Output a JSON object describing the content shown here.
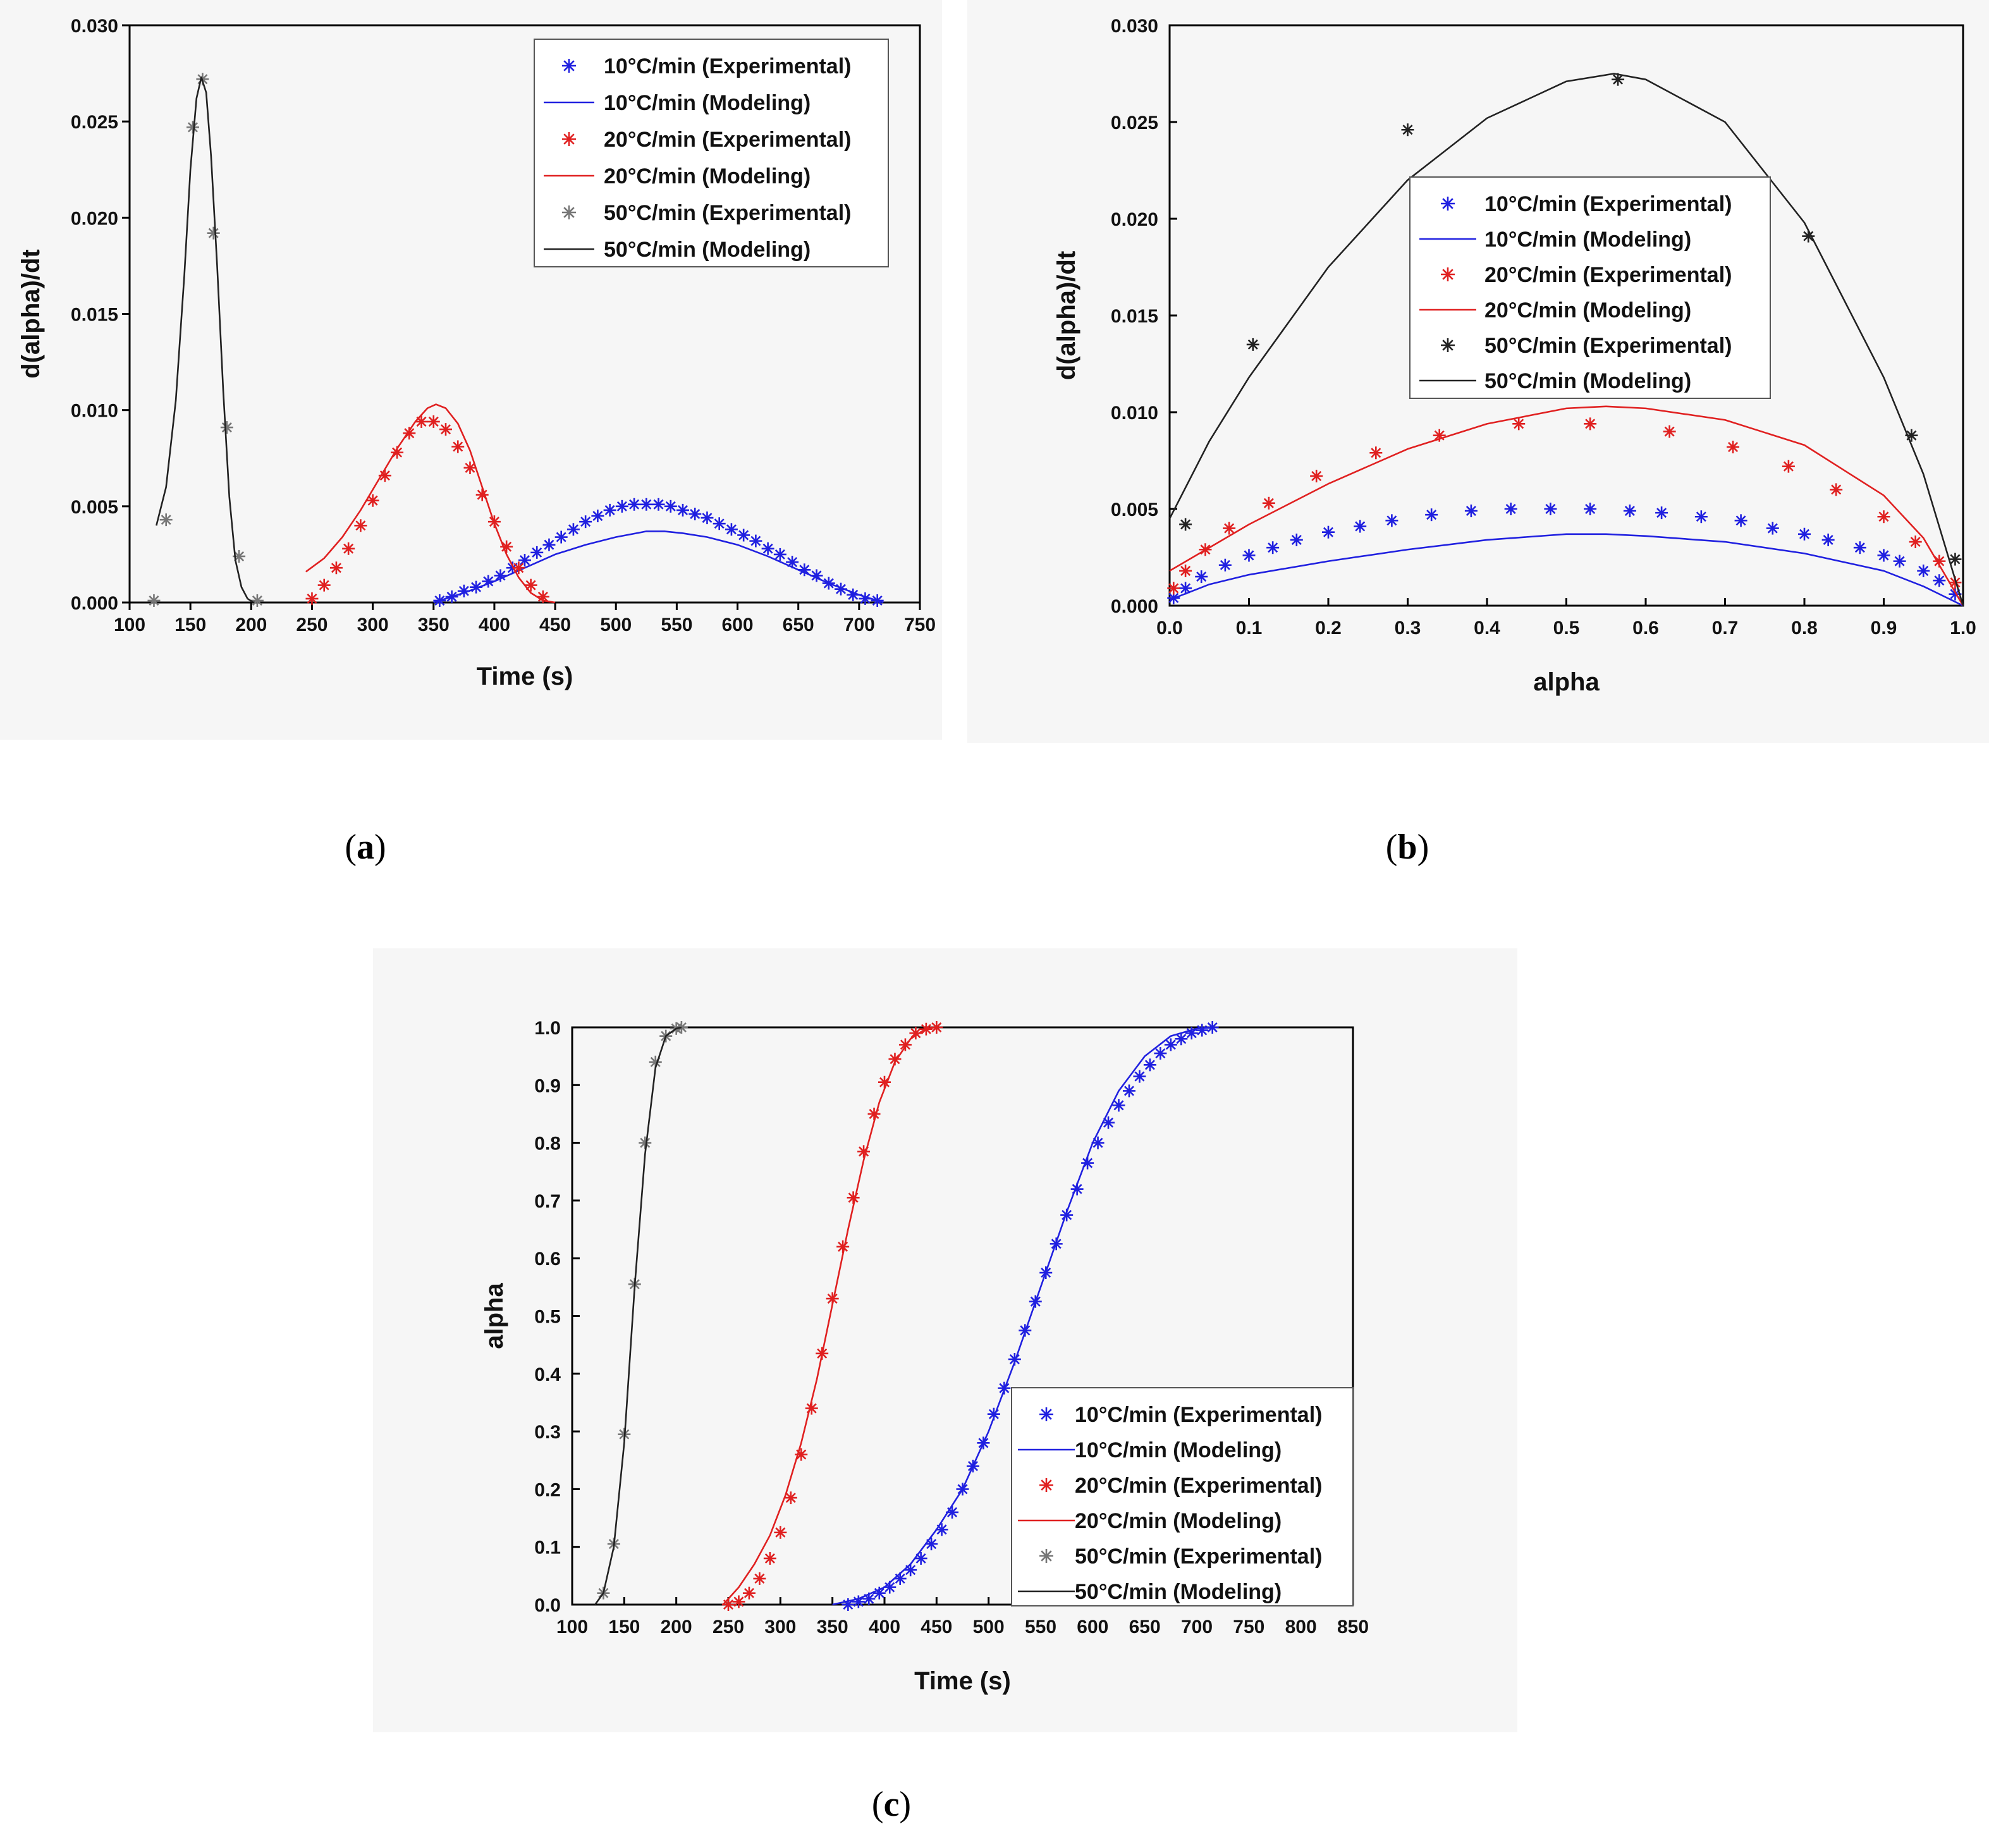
{
  "figure": {
    "panel_labels": [
      {
        "open": "(",
        "letter": "a",
        "close": ")"
      },
      {
        "open": "(",
        "letter": "b",
        "close": ")"
      },
      {
        "open": "(",
        "letter": "c",
        "close": ")"
      }
    ]
  },
  "legend_labels": [
    "10°C/min (Experimental)",
    "10°C/min (Modeling)",
    "20°C/min (Experimental)",
    "20°C/min (Modeling)",
    "50°C/min (Experimental)",
    "50°C/min (Modeling)"
  ],
  "colors": {
    "r10": "#2020e0",
    "r20": "#e02020",
    "r50": "#222222"
  },
  "chart_data": [
    {
      "id": "a",
      "type": "line+scatter",
      "xlabel": "Time (s)",
      "ylabel": "d(alpha)/dt",
      "xlim": [
        100,
        750
      ],
      "ylim": [
        0,
        0.03
      ],
      "xticks": [
        "100",
        "150",
        "200",
        "250",
        "300",
        "350",
        "400",
        "450",
        "500",
        "550",
        "600",
        "650",
        "700",
        "750"
      ],
      "yticks": [
        "0.000",
        "0.005",
        "0.010",
        "0.015",
        "0.020",
        "0.025",
        "0.030"
      ],
      "legend_position": "top-right",
      "series": [
        {
          "name": "10°C/min (Experimental)",
          "kind": "scatter",
          "color": "#2020e0",
          "x": [
            355,
            365,
            375,
            385,
            395,
            405,
            415,
            425,
            435,
            445,
            455,
            465,
            475,
            485,
            495,
            505,
            515,
            525,
            535,
            545,
            555,
            565,
            575,
            585,
            595,
            605,
            615,
            625,
            635,
            645,
            655,
            665,
            675,
            685,
            695,
            705,
            715
          ],
          "y": [
            0.0001,
            0.0003,
            0.0006,
            0.0008,
            0.0011,
            0.0014,
            0.0018,
            0.0022,
            0.0026,
            0.003,
            0.0034,
            0.0038,
            0.0042,
            0.0045,
            0.0048,
            0.005,
            0.0051,
            0.0051,
            0.0051,
            0.005,
            0.0048,
            0.0046,
            0.0044,
            0.0041,
            0.0038,
            0.0035,
            0.0032,
            0.0028,
            0.0025,
            0.0021,
            0.0017,
            0.0014,
            0.001,
            0.0007,
            0.0004,
            0.0002,
            0.0001
          ]
        },
        {
          "name": "10°C/min (Modeling)",
          "kind": "line",
          "color": "#2020e0",
          "x": [
            350,
            375,
            400,
            425,
            450,
            475,
            500,
            525,
            540,
            555,
            575,
            600,
            625,
            650,
            675,
            700,
            720
          ],
          "y": [
            0.0,
            0.0005,
            0.0011,
            0.0018,
            0.0025,
            0.003,
            0.0034,
            0.0037,
            0.0037,
            0.0036,
            0.0034,
            0.003,
            0.0024,
            0.0017,
            0.001,
            0.0004,
            0.0
          ]
        },
        {
          "name": "20°C/min (Experimental)",
          "kind": "scatter",
          "color": "#e02020",
          "x": [
            250,
            260,
            270,
            280,
            290,
            300,
            310,
            320,
            330,
            340,
            350,
            360,
            370,
            380,
            390,
            400,
            410,
            420,
            430,
            440
          ],
          "y": [
            0.0002,
            0.0009,
            0.0018,
            0.0028,
            0.004,
            0.0053,
            0.0066,
            0.0078,
            0.0088,
            0.0094,
            0.0094,
            0.009,
            0.0081,
            0.007,
            0.0056,
            0.0042,
            0.0029,
            0.0018,
            0.0009,
            0.0003
          ]
        },
        {
          "name": "20°C/min (Modeling)",
          "kind": "line",
          "color": "#e02020",
          "x": [
            245,
            260,
            275,
            290,
            305,
            320,
            335,
            345,
            352,
            360,
            370,
            380,
            390,
            400,
            410,
            420,
            430,
            440,
            450
          ],
          "y": [
            0.0016,
            0.0023,
            0.0034,
            0.0048,
            0.0064,
            0.008,
            0.0094,
            0.0101,
            0.0103,
            0.0101,
            0.0093,
            0.0079,
            0.006,
            0.0041,
            0.0025,
            0.0013,
            0.0005,
            0.0001,
            0.0
          ]
        },
        {
          "name": "50°C/min (Experimental)",
          "kind": "scatter",
          "color": "#777777",
          "x": [
            120,
            130,
            152,
            160,
            169,
            180,
            190,
            205
          ],
          "y": [
            0.0001,
            0.0043,
            0.0247,
            0.0272,
            0.0192,
            0.0091,
            0.0024,
            0.0001
          ]
        },
        {
          "name": "50°C/min (Modeling)",
          "kind": "line",
          "color": "#222222",
          "x": [
            122,
            130,
            138,
            145,
            150,
            155,
            159,
            163,
            167,
            172,
            177,
            182,
            187,
            192,
            197,
            202
          ],
          "y": [
            0.004,
            0.006,
            0.0105,
            0.017,
            0.0225,
            0.0262,
            0.0273,
            0.0265,
            0.0232,
            0.0175,
            0.011,
            0.0055,
            0.0022,
            0.0008,
            0.0002,
            0.0
          ]
        }
      ]
    },
    {
      "id": "b",
      "type": "line+scatter",
      "xlabel": "alpha",
      "ylabel": "d(alpha)/dt",
      "xlim": [
        0,
        1
      ],
      "ylim": [
        0,
        0.03
      ],
      "xticks": [
        "0.0",
        "0.1",
        "0.2",
        "0.3",
        "0.4",
        "0.5",
        "0.6",
        "0.7",
        "0.8",
        "0.9",
        "1.0"
      ],
      "yticks": [
        "0.000",
        "0.005",
        "0.010",
        "0.015",
        "0.020",
        "0.025",
        "0.030"
      ],
      "legend_position": "center",
      "series": [
        {
          "name": "10°C/min (Experimental)",
          "kind": "scatter",
          "color": "#2020e0",
          "x": [
            0.005,
            0.02,
            0.04,
            0.07,
            0.1,
            0.13,
            0.16,
            0.2,
            0.24,
            0.28,
            0.33,
            0.38,
            0.43,
            0.48,
            0.53,
            0.58,
            0.62,
            0.67,
            0.72,
            0.76,
            0.8,
            0.83,
            0.87,
            0.9,
            0.92,
            0.95,
            0.97,
            0.99
          ],
          "y": [
            0.0004,
            0.0009,
            0.0015,
            0.0021,
            0.0026,
            0.003,
            0.0034,
            0.0038,
            0.0041,
            0.0044,
            0.0047,
            0.0049,
            0.005,
            0.005,
            0.005,
            0.0049,
            0.0048,
            0.0046,
            0.0044,
            0.004,
            0.0037,
            0.0034,
            0.003,
            0.0026,
            0.0023,
            0.0018,
            0.0013,
            0.0006
          ]
        },
        {
          "name": "10°C/min (Modeling)",
          "kind": "line",
          "color": "#2020e0",
          "x": [
            0.0,
            0.05,
            0.1,
            0.2,
            0.3,
            0.4,
            0.5,
            0.55,
            0.6,
            0.7,
            0.8,
            0.9,
            0.95,
            1.0
          ],
          "y": [
            0.0003,
            0.0011,
            0.0016,
            0.0023,
            0.0029,
            0.0034,
            0.0037,
            0.0037,
            0.0036,
            0.0033,
            0.0027,
            0.0018,
            0.001,
            0.0
          ]
        },
        {
          "name": "20°C/min (Experimental)",
          "kind": "scatter",
          "color": "#e02020",
          "x": [
            0.005,
            0.02,
            0.045,
            0.075,
            0.125,
            0.185,
            0.26,
            0.34,
            0.44,
            0.53,
            0.63,
            0.71,
            0.78,
            0.84,
            0.9,
            0.94,
            0.97,
            0.99
          ],
          "y": [
            0.0009,
            0.0018,
            0.0029,
            0.004,
            0.0053,
            0.0067,
            0.0079,
            0.0088,
            0.0094,
            0.0094,
            0.009,
            0.0082,
            0.0072,
            0.006,
            0.0046,
            0.0033,
            0.0023,
            0.0012
          ]
        },
        {
          "name": "20°C/min (Modeling)",
          "kind": "line",
          "color": "#e02020",
          "x": [
            0.0,
            0.05,
            0.1,
            0.2,
            0.3,
            0.4,
            0.5,
            0.55,
            0.6,
            0.7,
            0.8,
            0.9,
            0.95,
            1.0
          ],
          "y": [
            0.0018,
            0.003,
            0.0042,
            0.0063,
            0.0081,
            0.0094,
            0.0102,
            0.0103,
            0.0102,
            0.0096,
            0.0083,
            0.0057,
            0.0035,
            0.0
          ]
        },
        {
          "name": "50°C/min (Experimental)",
          "kind": "scatter",
          "color": "#222222",
          "x": [
            0.02,
            0.105,
            0.3,
            0.565,
            0.805,
            0.935,
            0.99
          ],
          "y": [
            0.0042,
            0.0135,
            0.0246,
            0.0272,
            0.0191,
            0.0088,
            0.0024
          ]
        },
        {
          "name": "50°C/min (Modeling)",
          "kind": "line",
          "color": "#222222",
          "x": [
            0.0,
            0.05,
            0.1,
            0.2,
            0.3,
            0.4,
            0.5,
            0.56,
            0.6,
            0.7,
            0.8,
            0.9,
            0.95,
            1.0
          ],
          "y": [
            0.0045,
            0.0085,
            0.0118,
            0.0175,
            0.022,
            0.0252,
            0.0271,
            0.0275,
            0.0272,
            0.025,
            0.0198,
            0.0118,
            0.0068,
            0.0
          ]
        }
      ]
    },
    {
      "id": "c",
      "type": "line+scatter",
      "xlabel": "Time (s)",
      "ylabel": "alpha",
      "xlim": [
        100,
        850
      ],
      "ylim": [
        0,
        1
      ],
      "xticks": [
        "100",
        "150",
        "200",
        "250",
        "300",
        "350",
        "400",
        "450",
        "500",
        "550",
        "600",
        "650",
        "700",
        "750",
        "800",
        "850"
      ],
      "yticks": [
        "0.0",
        "0.1",
        "0.2",
        "0.3",
        "0.4",
        "0.5",
        "0.6",
        "0.7",
        "0.8",
        "0.9",
        "1.0"
      ],
      "legend_position": "bottom-right",
      "series": [
        {
          "name": "10°C/min (Experimental)",
          "kind": "scatter",
          "color": "#2020e0",
          "x": [
            365,
            375,
            385,
            395,
            405,
            415,
            425,
            435,
            445,
            455,
            465,
            475,
            485,
            495,
            505,
            515,
            525,
            535,
            545,
            555,
            565,
            575,
            585,
            595,
            605,
            615,
            625,
            635,
            645,
            655,
            665,
            675,
            685,
            695,
            705,
            715
          ],
          "y": [
            0.0,
            0.005,
            0.01,
            0.02,
            0.03,
            0.045,
            0.06,
            0.08,
            0.105,
            0.13,
            0.16,
            0.2,
            0.24,
            0.28,
            0.33,
            0.375,
            0.425,
            0.475,
            0.525,
            0.575,
            0.625,
            0.675,
            0.72,
            0.765,
            0.8,
            0.835,
            0.865,
            0.89,
            0.915,
            0.935,
            0.955,
            0.97,
            0.98,
            0.99,
            0.995,
            1.0
          ]
        },
        {
          "name": "10°C/min (Modeling)",
          "kind": "line",
          "color": "#2020e0",
          "x": [
            350,
            375,
            400,
            425,
            450,
            475,
            500,
            525,
            550,
            575,
            600,
            625,
            650,
            675,
            700,
            720
          ],
          "y": [
            0.0,
            0.01,
            0.03,
            0.07,
            0.13,
            0.2,
            0.3,
            0.42,
            0.55,
            0.68,
            0.8,
            0.89,
            0.95,
            0.985,
            0.998,
            1.0
          ]
        },
        {
          "name": "20°C/min (Experimental)",
          "kind": "scatter",
          "color": "#e02020",
          "x": [
            250,
            260,
            270,
            280,
            290,
            300,
            310,
            320,
            330,
            340,
            350,
            360,
            370,
            380,
            390,
            400,
            410,
            420,
            430,
            440,
            450
          ],
          "y": [
            0.0,
            0.005,
            0.02,
            0.045,
            0.08,
            0.125,
            0.185,
            0.26,
            0.34,
            0.435,
            0.53,
            0.62,
            0.705,
            0.785,
            0.85,
            0.905,
            0.945,
            0.97,
            0.99,
            0.997,
            1.0
          ]
        },
        {
          "name": "20°C/min (Modeling)",
          "kind": "line",
          "color": "#e02020",
          "x": [
            245,
            260,
            275,
            290,
            305,
            320,
            335,
            350,
            365,
            380,
            395,
            410,
            425,
            440,
            450
          ],
          "y": [
            0.0,
            0.03,
            0.07,
            0.12,
            0.19,
            0.28,
            0.39,
            0.52,
            0.65,
            0.77,
            0.87,
            0.94,
            0.98,
            0.998,
            1.0
          ]
        },
        {
          "name": "50°C/min (Experimental)",
          "kind": "scatter",
          "color": "#777777",
          "x": [
            130,
            140,
            150,
            160,
            170,
            180,
            190,
            200,
            205
          ],
          "y": [
            0.02,
            0.105,
            0.295,
            0.555,
            0.8,
            0.94,
            0.985,
            0.998,
            1.0
          ]
        },
        {
          "name": "50°C/min (Modeling)",
          "kind": "line",
          "color": "#222222",
          "x": [
            122,
            130,
            140,
            150,
            160,
            170,
            180,
            190,
            200,
            205
          ],
          "y": [
            0.0,
            0.02,
            0.1,
            0.28,
            0.55,
            0.78,
            0.93,
            0.985,
            0.998,
            1.0
          ]
        }
      ]
    }
  ]
}
